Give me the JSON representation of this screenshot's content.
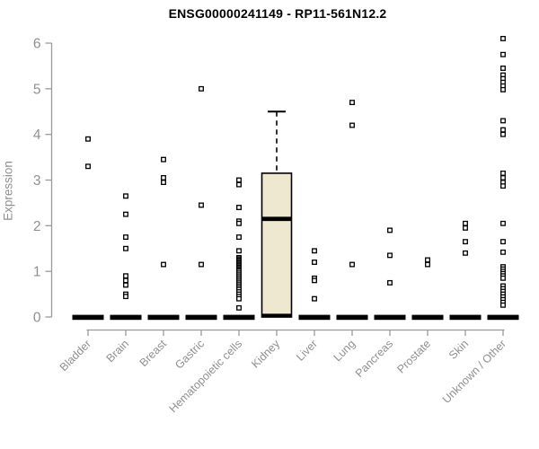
{
  "chart_data": {
    "type": "boxplot",
    "title": "ENSG00000241149 - RP11-561N12.2",
    "ylabel": "Expression",
    "xlabel": "",
    "ylim": [
      0,
      6
    ],
    "yticks": [
      0,
      1,
      2,
      3,
      4,
      5,
      6
    ],
    "grid": false,
    "legend": "none",
    "colors": {
      "axis": "#9a9a9a",
      "tick_text": "#8f8f8f",
      "title_text": "#000000",
      "box_fill": "#ede8cf",
      "box_border": "#000000",
      "outlier_fill": "#ffffff",
      "outlier_stroke": "#000000",
      "zero_bar": "#000000"
    },
    "categories": [
      "Bladder",
      "Brain",
      "Breast",
      "Gastric",
      "Hematopoietic cells",
      "Kidney",
      "Liver",
      "Lung",
      "Pancreas",
      "Prostate",
      "Skin",
      "Unknown / Other"
    ],
    "boxes": [
      {
        "category": "Bladder",
        "q1": 0,
        "median": 0,
        "q3": 0,
        "whisker_low": 0,
        "whisker_high": 0,
        "outliers": [
          3.9,
          3.3
        ]
      },
      {
        "category": "Brain",
        "q1": 0,
        "median": 0,
        "q3": 0,
        "whisker_low": 0,
        "whisker_high": 0,
        "outliers": [
          2.65,
          2.25,
          1.75,
          1.5,
          0.9,
          0.8,
          0.7,
          0.5,
          0.45
        ]
      },
      {
        "category": "Breast",
        "q1": 0,
        "median": 0,
        "q3": 0,
        "whisker_low": 0,
        "whisker_high": 0,
        "outliers": [
          3.45,
          3.05,
          2.95,
          1.15
        ]
      },
      {
        "category": "Gastric",
        "q1": 0,
        "median": 0,
        "q3": 0,
        "whisker_low": 0,
        "whisker_high": 0,
        "outliers": [
          5.0,
          2.45,
          1.15
        ]
      },
      {
        "category": "Hematopoietic cells",
        "q1": 0,
        "median": 0,
        "q3": 0,
        "whisker_low": 0,
        "whisker_high": 0,
        "outliers": [
          3.0,
          2.9,
          2.4,
          2.1,
          2.05,
          1.75,
          1.45,
          1.3,
          1.27,
          1.24,
          1.21,
          1.18,
          1.15,
          1.12,
          1.09,
          1.06,
          1.03,
          1.0,
          0.96,
          0.92,
          0.88,
          0.84,
          0.8,
          0.76,
          0.72,
          0.68,
          0.64,
          0.6,
          0.55,
          0.5,
          0.45,
          0.4,
          0.2
        ]
      },
      {
        "category": "Kidney",
        "q1": 0,
        "median": 2.15,
        "q3": 3.15,
        "whisker_low": 0,
        "whisker_high": 4.5,
        "outliers": []
      },
      {
        "category": "Liver",
        "q1": 0,
        "median": 0,
        "q3": 0,
        "whisker_low": 0,
        "whisker_high": 0,
        "outliers": [
          1.45,
          1.2,
          0.85,
          0.8,
          0.4
        ]
      },
      {
        "category": "Lung",
        "q1": 0,
        "median": 0,
        "q3": 0,
        "whisker_low": 0,
        "whisker_high": 0,
        "outliers": [
          4.7,
          4.2,
          1.15
        ]
      },
      {
        "category": "Pancreas",
        "q1": 0,
        "median": 0,
        "q3": 0,
        "whisker_low": 0,
        "whisker_high": 0,
        "outliers": [
          1.9,
          1.35,
          0.75
        ]
      },
      {
        "category": "Prostate",
        "q1": 0,
        "median": 0,
        "q3": 0,
        "whisker_low": 0,
        "whisker_high": 0,
        "outliers": [
          1.25,
          1.15
        ]
      },
      {
        "category": "Skin",
        "q1": 0,
        "median": 0,
        "q3": 0,
        "whisker_low": 0,
        "whisker_high": 0,
        "outliers": [
          2.05,
          1.95,
          1.65,
          1.4
        ]
      },
      {
        "category": "Unknown / Other",
        "q1": 0,
        "median": 0,
        "q3": 0,
        "whisker_low": 0,
        "whisker_high": 0,
        "outliers": [
          6.1,
          5.75,
          5.45,
          5.3,
          5.22,
          5.14,
          5.06,
          4.98,
          4.3,
          4.1,
          4.0,
          3.15,
          3.05,
          2.95,
          2.87,
          2.05,
          1.65,
          1.42,
          1.1,
          1.05,
          1.0,
          0.95,
          0.9,
          0.85,
          0.68,
          0.62,
          0.56,
          0.5,
          0.44,
          0.38,
          0.32,
          0.26
        ]
      }
    ]
  }
}
